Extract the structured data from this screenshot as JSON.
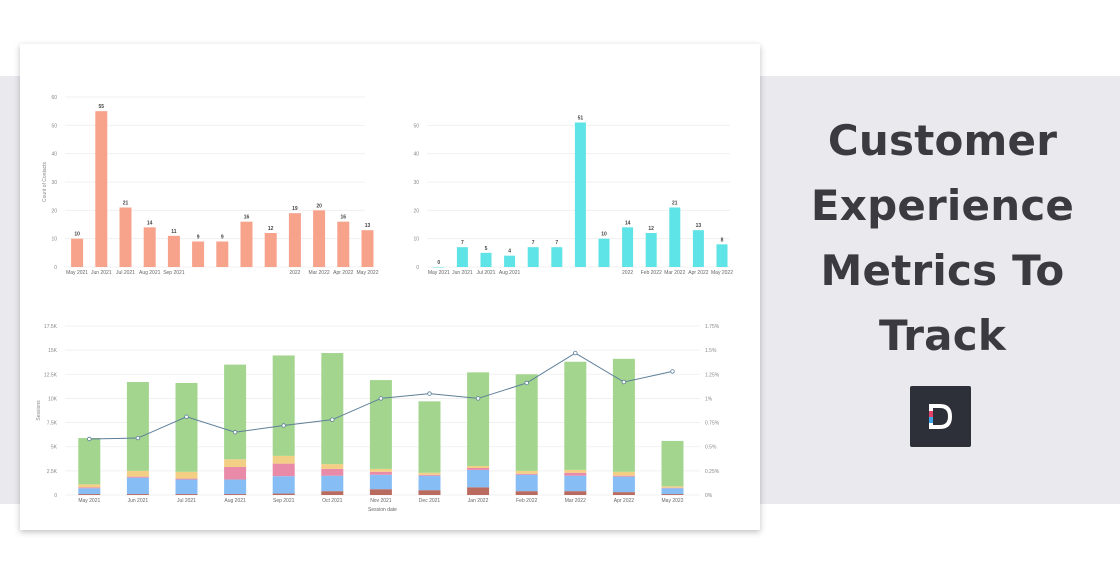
{
  "title_lines": [
    "Customer",
    "Experience",
    "Metrics To",
    "Track"
  ],
  "colors": {
    "band": "#e9e9ee",
    "title": "#3a3a40",
    "salmon": "#f7a38c",
    "cyan": "#5ee3e6",
    "green": "#a3d58f",
    "blue": "#86bdf5",
    "pink": "#e98aa8",
    "yellow": "#f3cf86",
    "brown": "#b96b5f",
    "line": "#5d7f99",
    "logo_bg": "#2d3038"
  },
  "logo": {
    "icon": "d-logo-icon"
  },
  "chart_data": [
    {
      "type": "bar",
      "ylabel": "Count of Contacts",
      "ylim": [
        0,
        60
      ],
      "yticks": [
        "0",
        "10",
        "20",
        "30",
        "40",
        "50",
        "60"
      ],
      "categories": [
        "May 2021",
        "Jun 2021",
        "Jul 2021",
        "Aug 2021",
        "Sep 2021",
        "",
        "",
        "",
        "",
        "2022",
        "Mar 2022",
        "Apr 2022",
        "May 2022"
      ],
      "values": [
        10,
        55,
        21,
        14,
        11,
        9,
        9,
        16,
        12,
        19,
        20,
        16,
        13
      ],
      "data_labels": [
        "10",
        "55",
        "21",
        "14",
        "11",
        "9",
        "9",
        "16",
        "12",
        "19",
        "20",
        "16",
        "13"
      ],
      "color": "#f7a38c"
    },
    {
      "type": "bar",
      "ylim": [
        0,
        60
      ],
      "yticks": [
        "0",
        "10",
        "20",
        "30",
        "40",
        "50"
      ],
      "categories": [
        "May 2021",
        "Jun 2021",
        "Jul 2021",
        "Aug 2021",
        "",
        "",
        "",
        "",
        "2022",
        "Feb 2022",
        "Mar 2022",
        "Apr 2022",
        "May 2022"
      ],
      "values": [
        0,
        7,
        5,
        4,
        7,
        7,
        51,
        10,
        14,
        12,
        21,
        13,
        8
      ],
      "data_labels": [
        "0",
        "7",
        "5",
        "4",
        "7",
        "7",
        "51",
        "10",
        "14",
        "12",
        "21",
        "13",
        "8"
      ],
      "color": "#5ee3e6"
    },
    {
      "type": "bar",
      "stacked": true,
      "xlabel": "Session date",
      "ylabel": "Sessions",
      "ylim": [
        0,
        17500
      ],
      "yticks": [
        "0",
        "2.5K",
        "5K",
        "7.5K",
        "10K",
        "12.5K",
        "15K",
        "17.5K"
      ],
      "y2lim": [
        0,
        1.75
      ],
      "y2ticks": [
        "0%",
        "0.25%",
        "0.5%",
        "0.75%",
        "1%",
        "1.25%",
        "1.5%",
        "1.75%"
      ],
      "categories": [
        "May 2021",
        "Jun 2021",
        "Jul 2021",
        "Aug 2021",
        "Sep 2021",
        "Oct 2021",
        "Nov 2021",
        "Dec 2021",
        "Jan 2022",
        "Feb 2022",
        "Mar 2022",
        "Apr 2022",
        "May 2022"
      ],
      "series": [
        {
          "color": "#b96b5f",
          "values": [
            100,
            100,
            100,
            100,
            150,
            400,
            600,
            500,
            800,
            400,
            400,
            300,
            100
          ]
        },
        {
          "color": "#86bdf5",
          "values": [
            600,
            1700,
            1500,
            1500,
            1800,
            1600,
            1500,
            1500,
            1800,
            1700,
            1600,
            1600,
            600
          ]
        },
        {
          "color": "#e98aa8",
          "values": [
            100,
            100,
            100,
            1300,
            1300,
            700,
            300,
            100,
            200,
            100,
            300,
            100,
            50
          ]
        },
        {
          "color": "#f3cf86",
          "values": [
            300,
            600,
            700,
            800,
            800,
            500,
            300,
            200,
            200,
            300,
            300,
            400,
            150
          ]
        },
        {
          "color": "#a3d58f",
          "values": [
            4800,
            9200,
            9200,
            9800,
            10400,
            11500,
            9200,
            7400,
            9700,
            10000,
            11200,
            11700,
            4700
          ]
        }
      ],
      "line_series": {
        "axis": "right",
        "color": "#5d7f99",
        "values": [
          0.58,
          0.59,
          0.81,
          0.65,
          0.72,
          0.78,
          1.0,
          1.05,
          1.0,
          1.16,
          1.47,
          1.17,
          1.28
        ]
      }
    }
  ]
}
